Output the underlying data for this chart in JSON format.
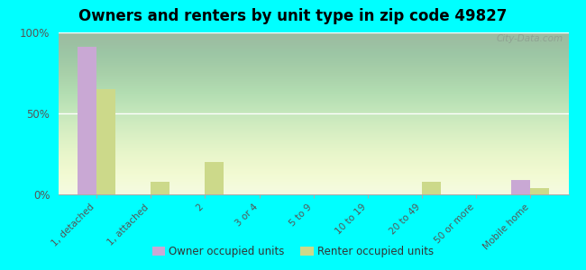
{
  "title": "Owners and renters by unit type in zip code 49827",
  "categories": [
    "1, detached",
    "1, attached",
    "2",
    "3 or 4",
    "5 to 9",
    "10 to 19",
    "20 to 49",
    "50 or more",
    "Mobile home"
  ],
  "owner_values": [
    91,
    0,
    0,
    0,
    0,
    0,
    0,
    0,
    9
  ],
  "renter_values": [
    65,
    8,
    20,
    0,
    0,
    0,
    8,
    0,
    4
  ],
  "owner_color": "#c9a8d4",
  "renter_color": "#ccd98a",
  "background_color": "#00ffff",
  "ylim": [
    0,
    100
  ],
  "yticks": [
    0,
    50,
    100
  ],
  "ytick_labels": [
    "0%",
    "50%",
    "100%"
  ],
  "bar_width": 0.35,
  "watermark": "City-Data.com",
  "legend_owner": "Owner occupied units",
  "legend_renter": "Renter occupied units",
  "gradient_top": "#d4edba",
  "gradient_bottom": "#f0f9e0"
}
